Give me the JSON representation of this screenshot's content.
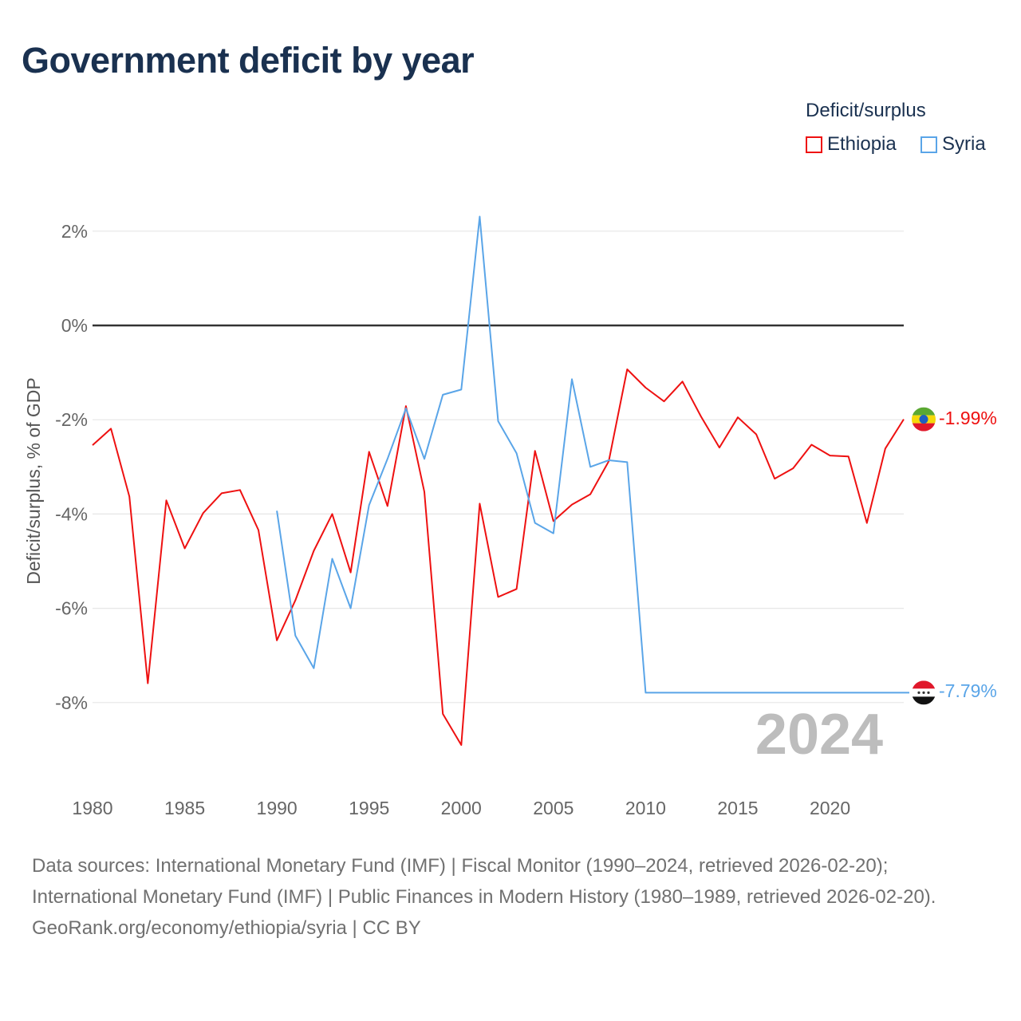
{
  "title": "Government deficit by year",
  "legend": {
    "title": "Deficit/surplus",
    "items": [
      {
        "name": "Ethiopia",
        "color": "#ee1111"
      },
      {
        "name": "Syria",
        "color": "#5aa5e8"
      }
    ]
  },
  "watermark_year": "2024",
  "end_labels": {
    "ethiopia": "-1.99%",
    "syria": "-7.79%"
  },
  "sources": {
    "line1": "Data sources: International Monetary Fund (IMF) | Fiscal Monitor (1990–2024, retrieved 2026-02-20); International Monetary Fund (IMF) | Public Finances in Modern History (1980–1989, retrieved 2026-02-20).",
    "line2": "GeoRank.org/economy/ethiopia/syria | CC BY"
  },
  "chart_data": {
    "type": "line",
    "title": "Government deficit by year",
    "xlabel": "",
    "ylabel": "Deficit/surplus, % of GDP",
    "xlim": [
      1980,
      2024
    ],
    "ylim": [
      -9.5,
      2.5
    ],
    "xticks": [
      1980,
      1985,
      1990,
      1995,
      2000,
      2005,
      2010,
      2015,
      2020
    ],
    "xtick_labels": [
      "1980",
      "1985",
      "1990",
      "1995",
      "2000",
      "2005",
      "2010",
      "2015",
      "2020"
    ],
    "yticks": [
      2,
      0,
      -2,
      -4,
      -6,
      -8
    ],
    "ytick_labels": [
      "2%",
      "0%",
      "-2%",
      "-4%",
      "-6%",
      "-8%"
    ],
    "grid": true,
    "legend_position": "top-right",
    "series": [
      {
        "name": "Ethiopia",
        "color": "#ee1111",
        "x": [
          1980,
          1981,
          1982,
          1983,
          1984,
          1985,
          1986,
          1987,
          1988,
          1989,
          1990,
          1991,
          1992,
          1993,
          1994,
          1995,
          1996,
          1997,
          1998,
          1999,
          2000,
          2001,
          2002,
          2003,
          2004,
          2005,
          2006,
          2007,
          2008,
          2009,
          2010,
          2011,
          2012,
          2013,
          2014,
          2015,
          2016,
          2017,
          2018,
          2019,
          2020,
          2021,
          2022,
          2023,
          2024
        ],
        "values": [
          -2.54,
          -2.19,
          -3.63,
          -7.59,
          -3.71,
          -4.73,
          -3.98,
          -3.56,
          -3.49,
          -4.34,
          -6.68,
          -5.83,
          -4.78,
          -4.0,
          -5.24,
          -2.68,
          -3.83,
          -1.71,
          -3.53,
          -8.24,
          -8.9,
          -3.78,
          -5.76,
          -5.59,
          -2.66,
          -4.15,
          -3.8,
          -3.58,
          -2.88,
          -0.93,
          -1.32,
          -1.61,
          -1.19,
          -1.93,
          -2.59,
          -1.95,
          -2.31,
          -3.25,
          -3.03,
          -2.53,
          -2.76,
          -2.78,
          -4.19,
          -2.61,
          -1.99
        ]
      },
      {
        "name": "Syria",
        "color": "#5aa5e8",
        "x": [
          1990,
          1991,
          1992,
          1993,
          1994,
          1995,
          1996,
          1997,
          1998,
          1999,
          2000,
          2001,
          2002,
          2003,
          2004,
          2005,
          2006,
          2007,
          2008,
          2009,
          2010,
          2011,
          2012,
          2013,
          2014,
          2015,
          2016,
          2017,
          2018,
          2019,
          2020,
          2021,
          2022,
          2023,
          2024
        ],
        "values": [
          -3.93,
          -6.58,
          -7.27,
          -4.95,
          -6.0,
          -3.81,
          -2.83,
          -1.76,
          -2.83,
          -1.47,
          -1.36,
          2.31,
          -2.03,
          -2.71,
          -4.19,
          -4.41,
          -1.14,
          -3.0,
          -2.86,
          -2.9,
          -7.79,
          -7.79,
          -7.79,
          -7.79,
          -7.79,
          -7.79,
          -7.79,
          -7.79,
          -7.79,
          -7.79,
          -7.79,
          -7.79,
          -7.79,
          -7.79,
          -7.79
        ]
      }
    ]
  }
}
